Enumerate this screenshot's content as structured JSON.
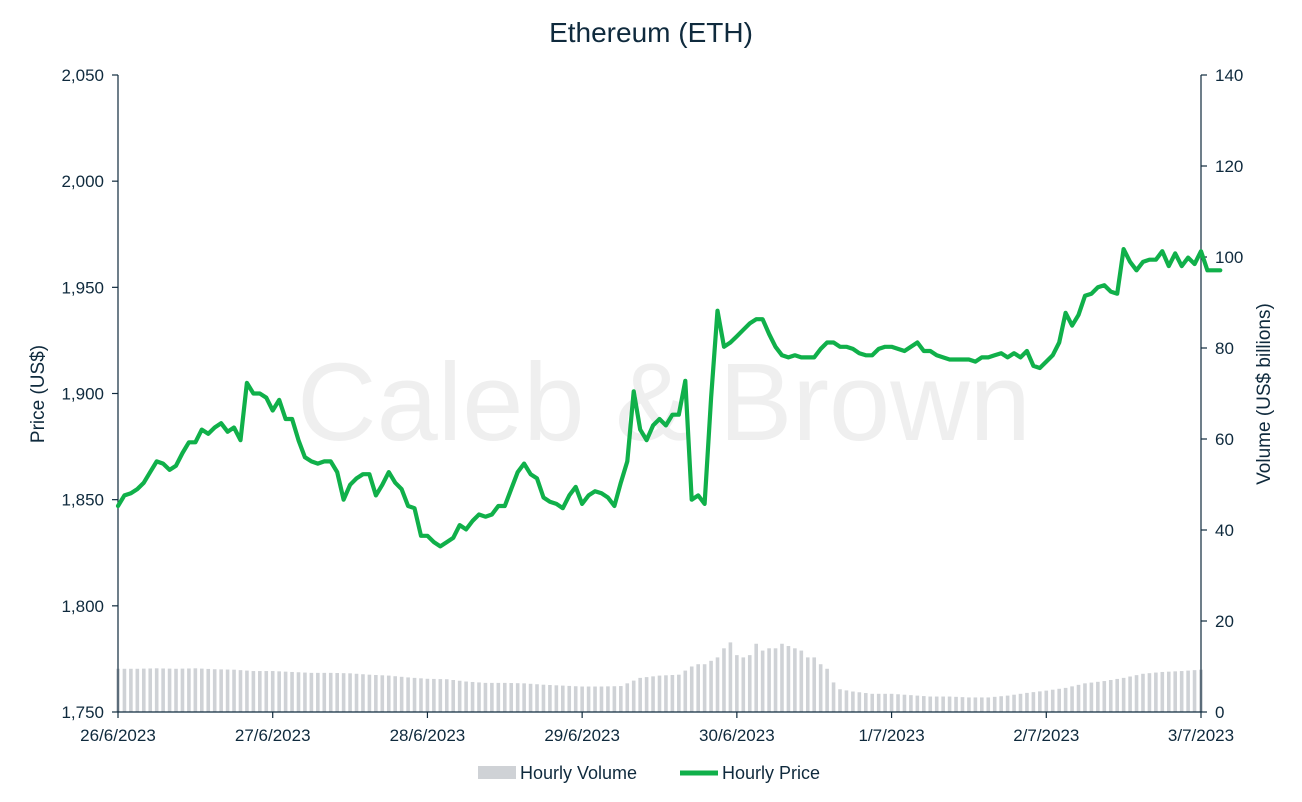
{
  "chart_data": {
    "type": "line",
    "title": "Ethereum (ETH)",
    "watermark": "Caleb & Brown",
    "x_tick_labels": [
      "26/6/2023",
      "27/6/2023",
      "28/6/2023",
      "29/6/2023",
      "30/6/2023",
      "1/7/2023",
      "2/7/2023",
      "3/7/2023"
    ],
    "y_left": {
      "label": "Price (US$)",
      "range": [
        1750,
        2050
      ],
      "ticks": [
        1750,
        1800,
        1850,
        1900,
        1950,
        2000,
        2050
      ],
      "tick_labels": [
        "1,750",
        "1,800",
        "1,850",
        "1,900",
        "1,950",
        "2,000",
        "2,050"
      ]
    },
    "y_right": {
      "label": "Volume (US$ billions)",
      "range": [
        0,
        140
      ],
      "ticks": [
        0,
        20,
        40,
        60,
        80,
        100,
        120,
        140
      ],
      "tick_labels": [
        "0",
        "20",
        "40",
        "60",
        "80",
        "100",
        "120",
        "140"
      ]
    },
    "legend": {
      "position": "bottom",
      "items": [
        {
          "name": "Hourly Volume",
          "color": "#cfd2d6",
          "kind": "bar"
        },
        {
          "name": "Hourly Price",
          "color": "#10b04a",
          "kind": "line"
        }
      ]
    },
    "x": {
      "start": "2023-06-26 00:00",
      "end": "2023-07-03 00:00",
      "step_hours": 1
    },
    "series": [
      {
        "name": "Hourly Price",
        "axis": "left",
        "color": "#10b04a",
        "anchors": [
          [
            0,
            1847
          ],
          [
            2,
            1852
          ],
          [
            4,
            1853
          ],
          [
            6,
            1855
          ],
          [
            8,
            1858
          ],
          [
            10,
            1863
          ],
          [
            12,
            1868
          ],
          [
            14,
            1867
          ],
          [
            16,
            1864
          ],
          [
            18,
            1866
          ],
          [
            20,
            1872
          ],
          [
            22,
            1877
          ],
          [
            24,
            1877
          ],
          [
            26,
            1883
          ],
          [
            28,
            1881
          ],
          [
            30,
            1884
          ],
          [
            32,
            1886
          ],
          [
            34,
            1882
          ],
          [
            36,
            1884
          ],
          [
            38,
            1878
          ],
          [
            40,
            1905
          ],
          [
            42,
            1900
          ],
          [
            44,
            1900
          ],
          [
            46,
            1898
          ],
          [
            48,
            1892
          ],
          [
            50,
            1897
          ],
          [
            52,
            1888
          ],
          [
            54,
            1888
          ],
          [
            56,
            1878
          ],
          [
            58,
            1870
          ],
          [
            60,
            1868
          ],
          [
            62,
            1867
          ],
          [
            64,
            1868
          ],
          [
            66,
            1868
          ],
          [
            68,
            1863
          ],
          [
            70,
            1850
          ],
          [
            72,
            1857
          ],
          [
            74,
            1860
          ],
          [
            76,
            1862
          ],
          [
            78,
            1862
          ],
          [
            80,
            1852
          ],
          [
            82,
            1857
          ],
          [
            84,
            1863
          ],
          [
            86,
            1858
          ],
          [
            88,
            1855
          ],
          [
            90,
            1847
          ],
          [
            92,
            1846
          ],
          [
            94,
            1833
          ],
          [
            96,
            1833
          ],
          [
            98,
            1830
          ],
          [
            100,
            1828
          ],
          [
            102,
            1830
          ],
          [
            104,
            1832
          ],
          [
            106,
            1838
          ],
          [
            108,
            1836
          ],
          [
            110,
            1840
          ],
          [
            112,
            1843
          ],
          [
            114,
            1842
          ],
          [
            116,
            1843
          ],
          [
            118,
            1847
          ],
          [
            120,
            1847
          ],
          [
            122,
            1855
          ],
          [
            124,
            1863
          ],
          [
            126,
            1867
          ],
          [
            128,
            1862
          ],
          [
            130,
            1860
          ],
          [
            132,
            1851
          ],
          [
            134,
            1849
          ],
          [
            136,
            1848
          ],
          [
            138,
            1846
          ],
          [
            140,
            1852
          ],
          [
            142,
            1856
          ],
          [
            144,
            1848
          ],
          [
            146,
            1852
          ],
          [
            148,
            1854
          ],
          [
            150,
            1853
          ],
          [
            152,
            1851
          ],
          [
            154,
            1847
          ],
          [
            156,
            1858
          ],
          [
            158,
            1868
          ],
          [
            160,
            1901
          ],
          [
            162,
            1883
          ],
          [
            164,
            1878
          ],
          [
            166,
            1885
          ],
          [
            168,
            1888
          ],
          [
            170,
            1885
          ],
          [
            172,
            1890
          ],
          [
            174,
            1890
          ],
          [
            176,
            1906
          ],
          [
            178,
            1850
          ],
          [
            180,
            1852
          ],
          [
            182,
            1848
          ],
          [
            184,
            1898
          ],
          [
            186,
            1939
          ],
          [
            188,
            1922
          ],
          [
            190,
            1924
          ],
          [
            192,
            1927
          ],
          [
            194,
            1930
          ],
          [
            196,
            1933
          ],
          [
            198,
            1935
          ],
          [
            200,
            1935
          ],
          [
            202,
            1928
          ],
          [
            204,
            1922
          ],
          [
            206,
            1918
          ],
          [
            208,
            1917
          ],
          [
            210,
            1918
          ],
          [
            212,
            1917
          ],
          [
            214,
            1917
          ],
          [
            216,
            1917
          ],
          [
            218,
            1921
          ],
          [
            220,
            1924
          ],
          [
            222,
            1924
          ],
          [
            224,
            1922
          ],
          [
            226,
            1922
          ],
          [
            228,
            1921
          ],
          [
            230,
            1919
          ],
          [
            232,
            1918
          ],
          [
            234,
            1918
          ],
          [
            236,
            1921
          ],
          [
            238,
            1922
          ],
          [
            240,
            1922
          ],
          [
            242,
            1921
          ],
          [
            244,
            1920
          ],
          [
            246,
            1922
          ],
          [
            248,
            1924
          ],
          [
            250,
            1920
          ],
          [
            252,
            1920
          ],
          [
            254,
            1918
          ],
          [
            256,
            1917
          ],
          [
            258,
            1916
          ],
          [
            260,
            1916
          ],
          [
            262,
            1916
          ],
          [
            264,
            1916
          ],
          [
            266,
            1915
          ],
          [
            268,
            1917
          ],
          [
            270,
            1917
          ],
          [
            272,
            1918
          ],
          [
            274,
            1919
          ],
          [
            276,
            1917
          ],
          [
            278,
            1919
          ],
          [
            280,
            1917
          ],
          [
            282,
            1920
          ],
          [
            284,
            1913
          ],
          [
            286,
            1912
          ],
          [
            288,
            1915
          ],
          [
            290,
            1918
          ],
          [
            292,
            1924
          ],
          [
            294,
            1938
          ],
          [
            296,
            1932
          ],
          [
            298,
            1937
          ],
          [
            300,
            1946
          ],
          [
            302,
            1947
          ],
          [
            304,
            1950
          ],
          [
            306,
            1951
          ],
          [
            308,
            1948
          ],
          [
            310,
            1947
          ],
          [
            312,
            1968
          ],
          [
            314,
            1962
          ],
          [
            316,
            1958
          ],
          [
            318,
            1962
          ],
          [
            320,
            1963
          ],
          [
            322,
            1963
          ],
          [
            324,
            1967
          ],
          [
            326,
            1960
          ],
          [
            328,
            1966
          ],
          [
            330,
            1960
          ],
          [
            332,
            1964
          ],
          [
            334,
            1961
          ],
          [
            336,
            1967
          ],
          [
            338,
            1958
          ],
          [
            340,
            1958
          ],
          [
            342,
            1958
          ]
        ]
      },
      {
        "name": "Hourly Volume",
        "axis": "right",
        "color": "#cfd2d6",
        "type": "bar",
        "anchors": [
          [
            0,
            9.5
          ],
          [
            6,
            9.5
          ],
          [
            12,
            9.6
          ],
          [
            18,
            9.5
          ],
          [
            24,
            9.6
          ],
          [
            30,
            9.4
          ],
          [
            36,
            9.3
          ],
          [
            42,
            9.0
          ],
          [
            48,
            9.0
          ],
          [
            54,
            8.8
          ],
          [
            60,
            8.6
          ],
          [
            66,
            8.6
          ],
          [
            72,
            8.5
          ],
          [
            78,
            8.2
          ],
          [
            84,
            8.0
          ],
          [
            90,
            7.6
          ],
          [
            96,
            7.3
          ],
          [
            102,
            7.2
          ],
          [
            108,
            6.7
          ],
          [
            114,
            6.4
          ],
          [
            120,
            6.4
          ],
          [
            126,
            6.3
          ],
          [
            132,
            6.0
          ],
          [
            138,
            5.8
          ],
          [
            144,
            5.6
          ],
          [
            150,
            5.6
          ],
          [
            156,
            5.7
          ],
          [
            162,
            7.5
          ],
          [
            168,
            8.0
          ],
          [
            174,
            8.2
          ],
          [
            178,
            10.0
          ],
          [
            180,
            10.5
          ],
          [
            182,
            10.5
          ],
          [
            186,
            12.0
          ],
          [
            188,
            14.0
          ],
          [
            190,
            15.3
          ],
          [
            192,
            12.5
          ],
          [
            194,
            12.0
          ],
          [
            196,
            12.5
          ],
          [
            198,
            15.0
          ],
          [
            200,
            13.5
          ],
          [
            202,
            14.0
          ],
          [
            204,
            14.0
          ],
          [
            206,
            15.0
          ],
          [
            208,
            14.5
          ],
          [
            210,
            14.0
          ],
          [
            212,
            13.5
          ],
          [
            214,
            12.0
          ],
          [
            216,
            12.0
          ],
          [
            218,
            10.5
          ],
          [
            220,
            9.5
          ],
          [
            222,
            6.5
          ],
          [
            224,
            5.0
          ],
          [
            228,
            4.5
          ],
          [
            234,
            4.0
          ],
          [
            240,
            4.0
          ],
          [
            246,
            3.7
          ],
          [
            252,
            3.4
          ],
          [
            258,
            3.4
          ],
          [
            264,
            3.2
          ],
          [
            270,
            3.2
          ],
          [
            276,
            3.6
          ],
          [
            282,
            4.2
          ],
          [
            288,
            4.7
          ],
          [
            294,
            5.3
          ],
          [
            300,
            6.3
          ],
          [
            306,
            6.8
          ],
          [
            312,
            7.5
          ],
          [
            318,
            8.4
          ],
          [
            324,
            8.8
          ],
          [
            330,
            9.0
          ],
          [
            336,
            9.3
          ],
          [
            342,
            9.5
          ]
        ]
      }
    ]
  }
}
